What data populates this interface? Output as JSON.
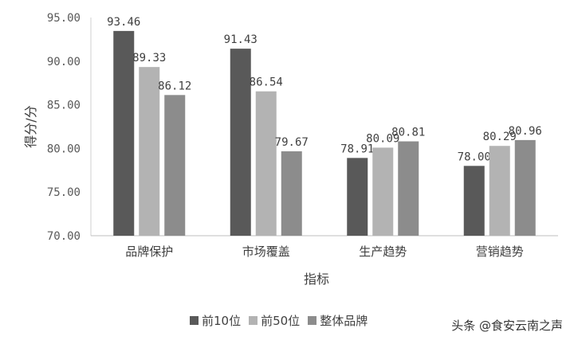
{
  "chart_data": {
    "type": "bar",
    "title": "",
    "xlabel": "指标",
    "ylabel": "得分/分",
    "ylim": [
      70,
      95
    ],
    "yticks": [
      "70.00",
      "75.00",
      "80.00",
      "85.00",
      "90.00",
      "95.00"
    ],
    "categories": [
      "品牌保护",
      "市场覆盖",
      "生产趋势",
      "营销趋势"
    ],
    "series": [
      {
        "name": "前10位",
        "color": "#595959",
        "values": [
          93.46,
          91.43,
          78.91,
          78.0
        ],
        "labels": [
          "93.46",
          "91.43",
          "78.91",
          "78.00"
        ]
      },
      {
        "name": "前50位",
        "color": "#b3b3b3",
        "values": [
          89.33,
          86.54,
          80.09,
          80.29
        ],
        "labels": [
          "89.33",
          "86.54",
          "80.09",
          "80.29"
        ]
      },
      {
        "name": "整体品牌",
        "color": "#8c8c8c",
        "values": [
          86.12,
          79.67,
          80.81,
          80.96
        ],
        "labels": [
          "86.12",
          "79.67",
          "80.81",
          "80.96"
        ]
      }
    ],
    "grid": false,
    "legend": "bottom"
  },
  "watermark": "头条 @食安云南之声"
}
